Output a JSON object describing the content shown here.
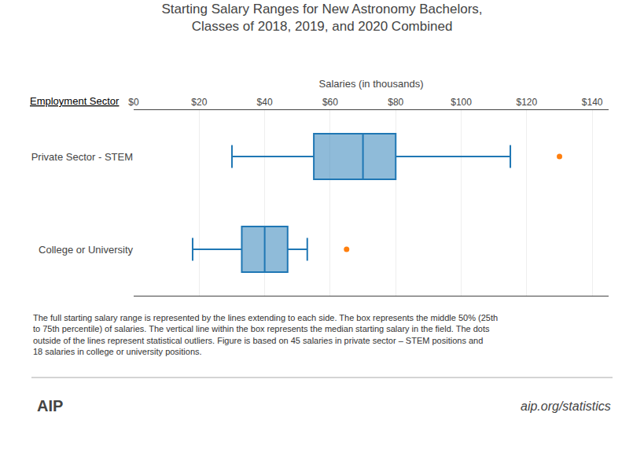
{
  "chart_data": {
    "type": "box",
    "orientation": "horizontal",
    "title": "Starting Salary Ranges for New Astronomy Bachelors,\nClasses of 2018, 2019, and 2020 Combined",
    "xlabel": "Salaries (in thousands)",
    "ylabel": "Employment Sector",
    "categories": [
      "Private Sector - STEM",
      "College or University"
    ],
    "whisker_low": [
      30,
      18
    ],
    "q1": [
      55,
      33
    ],
    "median": [
      70,
      40
    ],
    "q3": [
      80,
      47
    ],
    "whisker_high": [
      115,
      53
    ],
    "outliers": [
      [
        130
      ],
      [
        65
      ]
    ],
    "xlim": [
      0,
      145
    ],
    "xticks": [
      {
        "value": 0,
        "label": "$0"
      },
      {
        "value": 20,
        "label": "$20"
      },
      {
        "value": 40,
        "label": "$40"
      },
      {
        "value": 60,
        "label": "$60"
      },
      {
        "value": 80,
        "label": "$80"
      },
      {
        "value": 100,
        "label": "$100"
      },
      {
        "value": 120,
        "label": "$120"
      },
      {
        "value": 140,
        "label": "$140"
      }
    ],
    "grid": true,
    "caption": [
      "The full starting salary range is represented by the lines extending to each side. The box represents the middle 50% (25th",
      "to 75th percentile) of salaries. The vertical line within the box represents the median starting salary in the field. The dots",
      "outside of the lines represent statistical outliers. Figure is based on 45 salaries in private sector – STEM positions and",
      "18 salaries in college or university positions."
    ],
    "annotations": [
      "AIP",
      "aip.org/statistics"
    ]
  }
}
